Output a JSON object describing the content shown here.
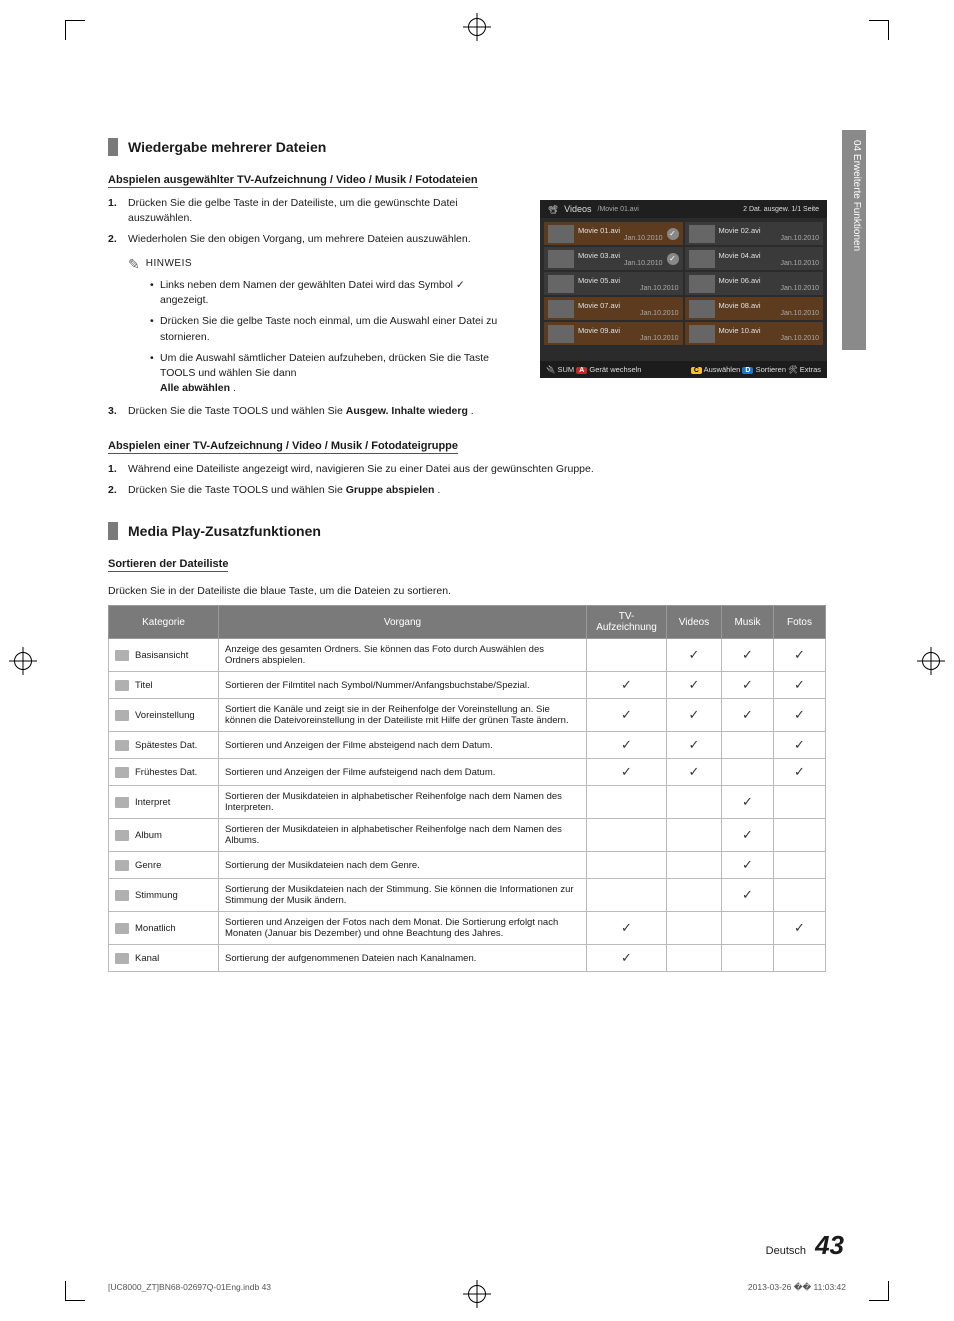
{
  "cropmarks": true,
  "sidebar_tab": "04   Erweiterte Funktionen",
  "sections": {
    "s1_title": "Wiedergabe mehrerer Dateien",
    "s1_sub": "Abspielen ausgewählter TV-Aufzeichnung / Video / Musik / Fotodateien",
    "s1_step1_num": "1.",
    "s1_step1": "Drücken Sie die gelbe Taste in der Dateiliste, um die gewünschte Datei auszuwählen.",
    "s1_step2_num": "2.",
    "s1_step2": "Wiederholen Sie den obigen Vorgang, um mehrere Dateien auszuwählen.",
    "hinweis_label": "HINWEIS",
    "s1_b1a": "Links neben dem Namen der gewählten Datei wird das Symbol ",
    "s1_b1b": " angezeigt.",
    "s1_b2": "Drücken Sie die gelbe Taste noch einmal, um die Auswahl einer Datei zu stornieren.",
    "s1_b3a": "Um die Auswahl sämtlicher Dateien aufzuheben, drücken Sie die Taste ",
    "s1_b3_tools": "TOOLS",
    "s1_b3b": " und wählen Sie dann ",
    "s1_b3_bold": "Alle abwählen",
    "s1_b3c": ".",
    "s1_step3_num": "3.",
    "s1_step3a": "Drücken Sie die Taste ",
    "s1_step3b": " und wählen Sie ",
    "s1_step3_bold": "Ausgew. Inhalte wiederg",
    "s1_step3c": ".",
    "s2_sub": "Abspielen einer TV-Aufzeichnung / Video / Musik / Fotodateigruppe",
    "s2_step1_num": "1.",
    "s2_step1": "Während eine Dateiliste angezeigt wird, navigieren Sie zu einer Datei aus der gewünschten Gruppe.",
    "s2_step2_num": "2.",
    "s2_step2a": "Drücken Sie die Taste ",
    "s2_step2b": " und wählen Sie ",
    "s2_step2_bold": "Gruppe abspielen",
    "s2_step2c": ".",
    "s3_title": "Media Play-Zusatzfunktionen",
    "s3_sub": "Sortieren der Dateiliste",
    "s3_intro": "Drücken Sie in der Dateiliste die blaue Taste, um die Dateien zu sortieren."
  },
  "screenshot": {
    "bg": "#2b2b2b",
    "header_left_icon": "📽",
    "header_title": "Videos",
    "header_path": "/Movie 01.avi",
    "header_right": "2 Dat. ausgew.   1/1 Seite",
    "items": [
      {
        "name": "Movie 01.avi",
        "date": "Jan.10.2010",
        "sel": true,
        "check": true
      },
      {
        "name": "Movie 02.avi",
        "date": "Jan.10.2010",
        "sel": false,
        "check": false
      },
      {
        "name": "Movie 03.avi",
        "date": "Jan.10.2010",
        "sel": false,
        "check": true
      },
      {
        "name": "Movie 04.avi",
        "date": "Jan.10.2010",
        "sel": false,
        "check": false
      },
      {
        "name": "Movie 05.avi",
        "date": "Jan.10.2010",
        "sel": false,
        "check": false
      },
      {
        "name": "Movie 06.avi",
        "date": "Jan.10.2010",
        "sel": false,
        "check": false
      },
      {
        "name": "Movie 07.avi",
        "date": "Jan.10.2010",
        "sel": true,
        "check": false
      },
      {
        "name": "Movie 08.avi",
        "date": "Jan.10.2010",
        "sel": true,
        "check": false
      },
      {
        "name": "Movie 09.avi",
        "date": "Jan.10.2010",
        "sel": true,
        "check": false
      },
      {
        "name": "Movie 10.avi",
        "date": "Jan.10.2010",
        "sel": true,
        "check": false
      }
    ],
    "footer_left_icon": "🔌",
    "footer_left": "SUM",
    "footer_a": "Gerät wechseln",
    "footer_c": "Auswählen",
    "footer_d": "Sortieren",
    "footer_tools": "Extras"
  },
  "table": {
    "headers": [
      "Kategorie",
      "Vorgang",
      "TV-Aufzeichnung",
      "Videos",
      "Musik",
      "Fotos"
    ],
    "col_widths": [
      "110px",
      "auto",
      "80px",
      "55px",
      "52px",
      "52px"
    ],
    "header_bg": "#7a7a7a",
    "header_color": "#ffffff",
    "border_color": "#bbbbbb",
    "rows": [
      {
        "cat": "Basisansicht",
        "op": "Anzeige des gesamten Ordners. Sie können das Foto durch Auswählen des Ordners abspielen.",
        "c": [
          false,
          true,
          true,
          true
        ]
      },
      {
        "cat": "Titel",
        "op": "Sortieren der Filmtitel nach Symbol/Nummer/Anfangsbuchstabe/Spezial.",
        "c": [
          true,
          true,
          true,
          true
        ]
      },
      {
        "cat": "Voreinstellung",
        "op": "Sortiert die Kanäle und zeigt sie in der Reihenfolge der Voreinstellung an. Sie können die Dateivoreinstellung in der Dateiliste mit Hilfe der grünen Taste ändern.",
        "c": [
          true,
          true,
          true,
          true
        ]
      },
      {
        "cat": "Spätestes Dat.",
        "op": "Sortieren und Anzeigen der Filme absteigend nach dem Datum.",
        "c": [
          true,
          true,
          false,
          true
        ]
      },
      {
        "cat": "Frühestes Dat.",
        "op": "Sortieren und Anzeigen der Filme aufsteigend nach dem Datum.",
        "c": [
          true,
          true,
          false,
          true
        ]
      },
      {
        "cat": "Interpret",
        "op": "Sortieren der Musikdateien in alphabetischer Reihenfolge nach dem Namen des Interpreten.",
        "c": [
          false,
          false,
          true,
          false
        ]
      },
      {
        "cat": "Album",
        "op": "Sortieren der Musikdateien in alphabetischer Reihenfolge nach dem Namen des Albums.",
        "c": [
          false,
          false,
          true,
          false
        ]
      },
      {
        "cat": "Genre",
        "op": "Sortierung der Musikdateien nach dem Genre.",
        "c": [
          false,
          false,
          true,
          false
        ]
      },
      {
        "cat": "Stimmung",
        "op": "Sortierung der Musikdateien nach der Stimmung. Sie können die Informationen zur Stimmung der Musik ändern.",
        "c": [
          false,
          false,
          true,
          false
        ]
      },
      {
        "cat": "Monatlich",
        "op": "Sortieren und Anzeigen der Fotos nach dem Monat. Die Sortierung erfolgt nach Monaten (Januar bis Dezember) und ohne Beachtung des Jahres.",
        "c": [
          true,
          false,
          false,
          true
        ]
      },
      {
        "cat": "Kanal",
        "op": "Sortierung der aufgenommenen Dateien nach Kanalnamen.",
        "c": [
          true,
          false,
          false,
          false
        ]
      }
    ],
    "check_glyph": "✓"
  },
  "footer": {
    "lang": "Deutsch",
    "page": "43",
    "imprint_left": "[UC8000_ZT]BN68-02697Q-01Eng.indb   43",
    "imprint_right": "2013-03-26   �� 11:03:42"
  }
}
